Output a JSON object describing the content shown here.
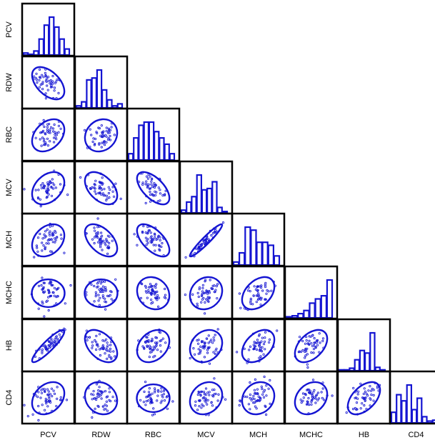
{
  "chart_data": {
    "type": "scatter",
    "variables": [
      "PCV",
      "RDW",
      "RBC",
      "MCV",
      "MCH",
      "MCHC",
      "HB",
      "CD4"
    ],
    "layout": "lower-triangular scatterplot matrix with histograms on the diagonal and concentration ellipses in each scatter panel",
    "colors": {
      "marks": "#1414d2",
      "frame": "#000000"
    },
    "histograms": {
      "PCV": [
        1,
        0,
        2,
        8,
        15,
        19,
        14,
        8,
        3
      ],
      "RDW": [
        1,
        3,
        14,
        15,
        19,
        9,
        4,
        1,
        2
      ],
      "RBC": [
        2,
        7,
        11,
        12,
        12,
        9,
        7,
        5,
        2
      ],
      "MCV": [
        2,
        8,
        12,
        28,
        17,
        18,
        23,
        4,
        1
      ],
      "MCH": [
        2,
        8,
        25,
        23,
        15,
        15,
        13,
        6
      ],
      "MCHC": [
        1,
        2,
        4,
        7,
        14,
        18,
        21,
        36
      ],
      "HB": [
        1,
        1,
        3,
        13,
        24,
        21,
        45,
        4,
        1
      ],
      "CD4": [
        12,
        32,
        25,
        43,
        15,
        28,
        7,
        2,
        3
      ]
    },
    "correlations": {
      "RDW-PCV": -0.5,
      "RBC-PCV": 0.35,
      "RBC-RDW": 0.15,
      "MCV-PCV": 0.35,
      "MCV-RDW": -0.45,
      "MCV-RBC": -0.6,
      "MCH-PCV": 0.3,
      "MCH-RDW": -0.5,
      "MCH-RBC": -0.6,
      "MCH-MCV": 0.95,
      "MCHC-PCV": 0.1,
      "MCHC-RDW": -0.05,
      "MCHC-RBC": -0.15,
      "MCHC-MCV": 0.15,
      "MCHC-MCH": 0.4,
      "HB-PCV": 0.9,
      "HB-RDW": -0.45,
      "HB-RBC": 0.3,
      "HB-MCV": 0.2,
      "HB-MCH": 0.4,
      "HB-MCHC": 0.45,
      "CD4-PCV": 0.3,
      "CD4-RDW": -0.15,
      "CD4-RBC": -0.05,
      "CD4-MCV": 0.2,
      "CD4-MCH": 0.15,
      "CD4-MCHC": 0.25,
      "CD4-HB": 0.5
    },
    "points_per_panel": 50
  }
}
